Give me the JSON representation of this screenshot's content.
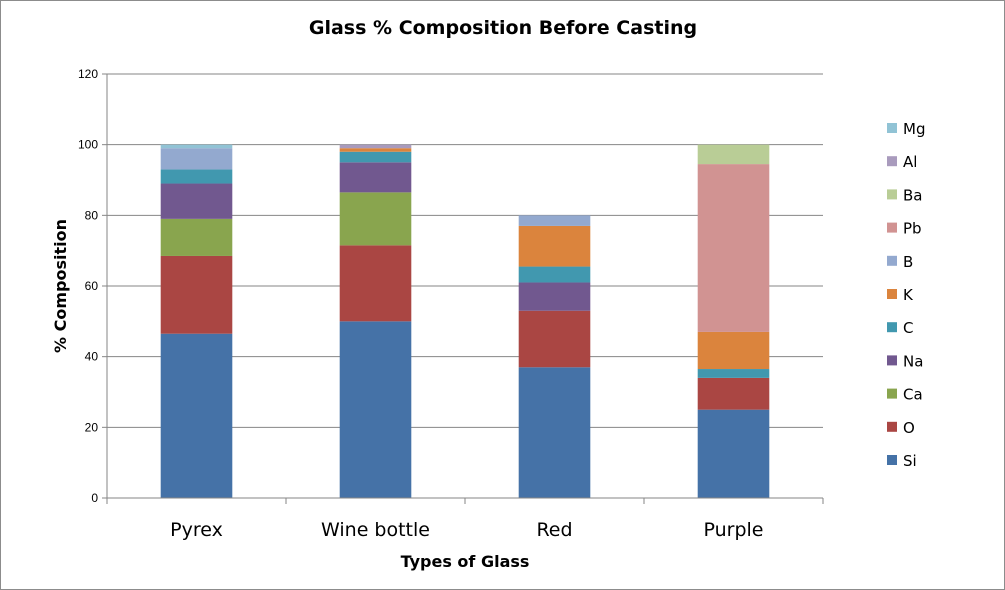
{
  "chart_data": {
    "type": "bar",
    "stacked": true,
    "title": "Glass % Composition Before Casting",
    "xlabel": "Types of Glass",
    "ylabel": "% Composition",
    "ylim": [
      0,
      120
    ],
    "yticks": [
      0,
      20,
      40,
      60,
      80,
      100,
      120
    ],
    "grid": true,
    "legend_position": "right",
    "categories": [
      "Pyrex",
      "Wine bottle",
      "Red",
      "Purple"
    ],
    "series": [
      {
        "name": "Si",
        "color": "#4572a7",
        "values": [
          46.5,
          50,
          37,
          25
        ]
      },
      {
        "name": "O",
        "color": "#aa4643",
        "values": [
          22,
          21.5,
          16,
          9
        ]
      },
      {
        "name": "Ca",
        "color": "#89a54e",
        "values": [
          10.5,
          15,
          0,
          0
        ]
      },
      {
        "name": "Na",
        "color": "#71588f",
        "values": [
          10,
          8.5,
          8,
          0
        ]
      },
      {
        "name": "C",
        "color": "#4198af",
        "values": [
          4,
          3,
          4.5,
          2.5
        ]
      },
      {
        "name": "K",
        "color": "#db843d",
        "values": [
          0,
          1,
          11.5,
          10.5
        ]
      },
      {
        "name": "B",
        "color": "#93a9cf",
        "values": [
          6,
          0,
          3,
          0
        ]
      },
      {
        "name": "Pb",
        "color": "#d19392",
        "values": [
          0,
          0,
          0,
          47.5
        ]
      },
      {
        "name": "Ba",
        "color": "#b9cd96",
        "values": [
          0,
          0,
          0,
          5.5
        ]
      },
      {
        "name": "Al",
        "color": "#a99bbd",
        "values": [
          0,
          1,
          0,
          0
        ]
      },
      {
        "name": "Mg",
        "color": "#91c3d5",
        "values": [
          1,
          0,
          0,
          0
        ]
      }
    ]
  }
}
